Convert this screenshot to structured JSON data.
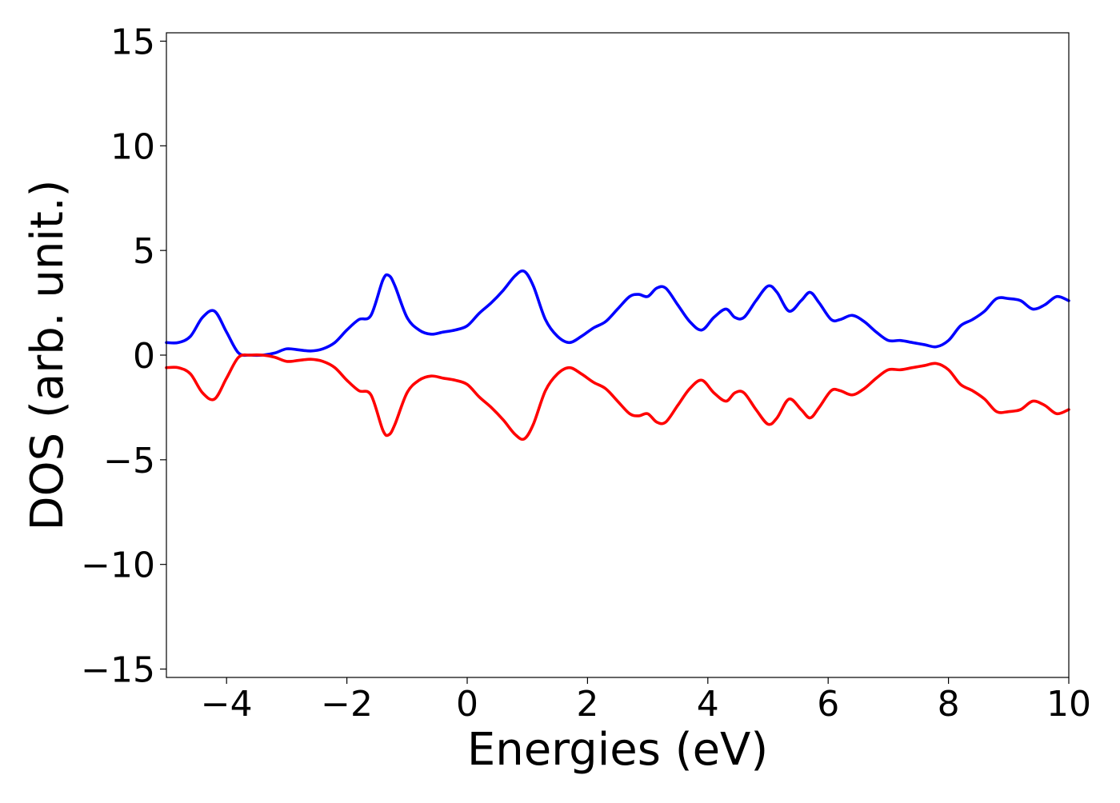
{
  "chart_data": {
    "type": "line",
    "xlabel": "Energies (eV)",
    "ylabel": "DOS (arb. unit.)",
    "xlim": [
      -5,
      10
    ],
    "ylim": [
      -15.4,
      15.4
    ],
    "grid": false,
    "xticks": [
      -4,
      -2,
      0,
      2,
      4,
      6,
      8,
      10
    ],
    "xtick_labels": [
      "−4",
      "−2",
      "0",
      "2",
      "4",
      "6",
      "8",
      "10"
    ],
    "yticks": [
      15,
      10,
      5,
      0,
      -5,
      -10,
      -15
    ],
    "ytick_labels": [
      "15",
      "10",
      "5",
      "0",
      "−5",
      "−10",
      "−15"
    ],
    "x": [
      -5.0,
      -4.8,
      -4.6,
      -4.4,
      -4.2,
      -4.0,
      -3.8,
      -3.6,
      -3.4,
      -3.2,
      -3.0,
      -2.8,
      -2.6,
      -2.4,
      -2.2,
      -2.0,
      -1.8,
      -1.6,
      -1.4,
      -1.3,
      -1.2,
      -1.0,
      -0.8,
      -0.6,
      -0.4,
      -0.2,
      0.0,
      0.2,
      0.4,
      0.6,
      0.8,
      0.95,
      1.1,
      1.3,
      1.5,
      1.7,
      1.9,
      2.1,
      2.3,
      2.5,
      2.7,
      2.85,
      3.0,
      3.15,
      3.3,
      3.5,
      3.7,
      3.9,
      4.1,
      4.3,
      4.45,
      4.6,
      4.8,
      5.0,
      5.15,
      5.35,
      5.55,
      5.7,
      5.85,
      6.05,
      6.2,
      6.4,
      6.6,
      6.8,
      7.0,
      7.2,
      7.4,
      7.6,
      7.8,
      8.0,
      8.2,
      8.4,
      8.6,
      8.8,
      9.0,
      9.2,
      9.4,
      9.6,
      9.8,
      10.0
    ],
    "series": [
      {
        "color": "#0000ff",
        "values": [
          0.6,
          0.6,
          0.9,
          1.8,
          2.1,
          1.1,
          0.1,
          0.0,
          0.0,
          0.1,
          0.3,
          0.25,
          0.2,
          0.3,
          0.6,
          1.2,
          1.7,
          1.9,
          3.6,
          3.8,
          3.3,
          1.8,
          1.2,
          1.0,
          1.1,
          1.2,
          1.4,
          2.0,
          2.5,
          3.1,
          3.8,
          4.0,
          3.3,
          1.7,
          0.9,
          0.6,
          0.9,
          1.3,
          1.6,
          2.2,
          2.8,
          2.9,
          2.8,
          3.2,
          3.2,
          2.4,
          1.6,
          1.2,
          1.8,
          2.2,
          1.8,
          1.8,
          2.6,
          3.3,
          3.0,
          2.1,
          2.6,
          3.0,
          2.5,
          1.7,
          1.7,
          1.9,
          1.6,
          1.1,
          0.7,
          0.7,
          0.6,
          0.5,
          0.4,
          0.7,
          1.4,
          1.7,
          2.1,
          2.7,
          2.7,
          2.6,
          2.2,
          2.4,
          2.8,
          2.6
        ]
      },
      {
        "color": "#ff0000",
        "values": [
          -0.6,
          -0.6,
          -0.9,
          -1.8,
          -2.1,
          -1.1,
          -0.1,
          0.0,
          0.0,
          -0.1,
          -0.3,
          -0.25,
          -0.2,
          -0.3,
          -0.6,
          -1.2,
          -1.7,
          -1.9,
          -3.6,
          -3.8,
          -3.3,
          -1.8,
          -1.2,
          -1.0,
          -1.1,
          -1.2,
          -1.4,
          -2.0,
          -2.5,
          -3.1,
          -3.8,
          -4.0,
          -3.3,
          -1.7,
          -0.9,
          -0.6,
          -0.9,
          -1.3,
          -1.6,
          -2.2,
          -2.8,
          -2.9,
          -2.8,
          -3.2,
          -3.2,
          -2.4,
          -1.6,
          -1.2,
          -1.8,
          -2.2,
          -1.8,
          -1.8,
          -2.6,
          -3.3,
          -3.0,
          -2.1,
          -2.6,
          -3.0,
          -2.5,
          -1.7,
          -1.7,
          -1.9,
          -1.6,
          -1.1,
          -0.7,
          -0.7,
          -0.6,
          -0.5,
          -0.4,
          -0.7,
          -1.4,
          -1.7,
          -2.1,
          -2.7,
          -2.7,
          -2.6,
          -2.2,
          -2.4,
          -2.8,
          -2.6
        ]
      }
    ]
  }
}
